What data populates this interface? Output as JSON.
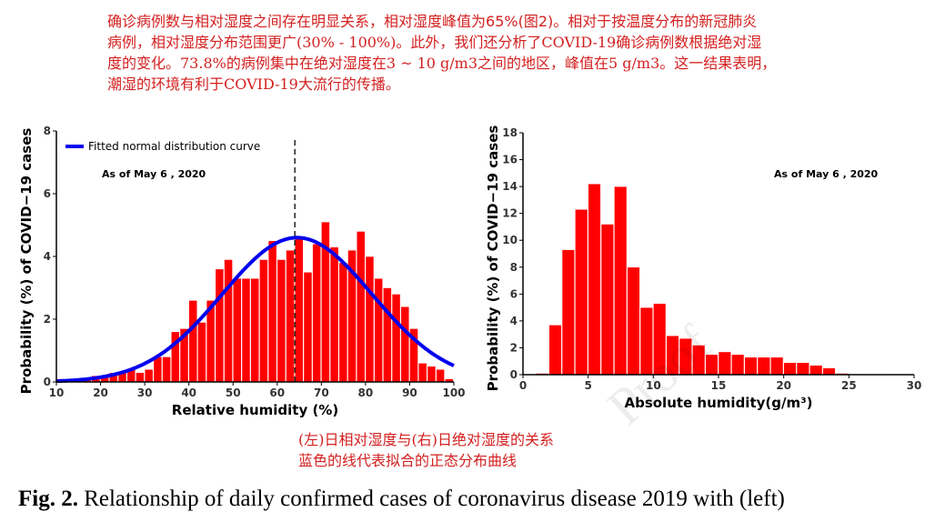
{
  "annotation": {
    "lines": [
      [
        "确诊病例数与相对湿度之间存在明显关系，相对湿度峰值为",
        "65%(图2)",
        "。相对于按温度分布的新冠肺炎"
      ],
      [
        "病例，相对湿度分布范围更广(30% - 100%)。此外，我们还分析了COVID-19确诊病例数根据绝对湿"
      ],
      [
        "度的变化。73.8%的病例集中在绝对湿度在3 ~ 10 g/m3之间的地区，峰值在5 g/m3。这一结果表明，"
      ],
      [
        "潮湿的环境有利于COVID-19大流行的传播。"
      ]
    ]
  },
  "caption_cn": {
    "line1": "(左)日相对湿度与(右)日绝对湿度的关系",
    "line2": "蓝色的线代表拟合的正态分布曲线"
  },
  "figure_caption": {
    "label": "Fig. 2.",
    "text": " Relationship of daily confirmed cases of coronavirus disease 2019 with (left)"
  },
  "watermark": "Proof",
  "colors": {
    "bar": "#ff0000",
    "curve": "#0000ee",
    "annotation": "#d42020"
  },
  "chart_data": [
    {
      "type": "bar",
      "xlabel": "Relative humidity (%)",
      "ylabel": "Probability (%) of COVID−19 cases",
      "annotation": "As of May 6 , 2020",
      "legend": {
        "label": "Fitted normal distribution curve",
        "placement": "top-left"
      },
      "xlim": [
        10,
        100
      ],
      "ylim": [
        0,
        8
      ],
      "xticks": [
        10,
        20,
        30,
        40,
        50,
        60,
        70,
        80,
        90,
        100
      ],
      "yticks": [
        0,
        2,
        4,
        6,
        8
      ],
      "bin_width": 2,
      "bins_start": [
        10,
        12,
        14,
        16,
        18,
        20,
        22,
        24,
        26,
        28,
        30,
        32,
        34,
        36,
        38,
        40,
        42,
        44,
        46,
        48,
        50,
        52,
        54,
        56,
        58,
        60,
        62,
        64,
        66,
        68,
        70,
        72,
        74,
        76,
        78,
        80,
        82,
        84,
        86,
        88,
        90,
        92,
        94,
        96,
        98
      ],
      "values": [
        0.1,
        0.1,
        0.1,
        0.1,
        0.2,
        0.2,
        0.3,
        0.3,
        0.4,
        0.3,
        0.4,
        0.8,
        0.8,
        1.6,
        1.7,
        2.6,
        1.9,
        2.6,
        3.6,
        3.9,
        3.3,
        3.3,
        3.3,
        3.9,
        4.5,
        3.9,
        4.2,
        4.6,
        3.5,
        4.4,
        5.1,
        4.3,
        3.8,
        4.2,
        4.8,
        4.0,
        3.3,
        3.0,
        2.8,
        2.4,
        1.7,
        0.6,
        0.5,
        0.4,
        0.1
      ],
      "dashed_line_x": 64,
      "fit_curve": {
        "mean": 64.5,
        "sd": 17.0,
        "peak": 4.6,
        "color": "#0000ee"
      }
    },
    {
      "type": "bar",
      "xlabel": "Absolute humidity(g/m³)",
      "ylabel": "Probability (%) of COVID−19 cases",
      "annotation": "As of May 6 , 2020",
      "xlim": [
        0,
        30
      ],
      "ylim": [
        0,
        18
      ],
      "xticks": [
        0,
        5,
        10,
        15,
        20,
        25,
        30
      ],
      "yticks": [
        0,
        2,
        4,
        6,
        8,
        10,
        12,
        14,
        16,
        18
      ],
      "bin_width": 1,
      "bins_start": [
        1,
        2,
        3,
        4,
        5,
        6,
        7,
        8,
        9,
        10,
        11,
        12,
        13,
        14,
        15,
        16,
        17,
        18,
        19,
        20,
        21,
        22,
        23,
        24,
        25,
        26,
        27,
        28,
        29
      ],
      "values": [
        0.1,
        3.7,
        9.3,
        12.3,
        14.2,
        11.2,
        14.0,
        8.0,
        5.0,
        5.3,
        2.9,
        2.7,
        2.2,
        1.5,
        1.7,
        1.5,
        1.3,
        1.3,
        1.3,
        0.9,
        0.9,
        0.7,
        0.5,
        0.1,
        0.05,
        0.05,
        0.05,
        0.05,
        0.05
      ]
    }
  ]
}
